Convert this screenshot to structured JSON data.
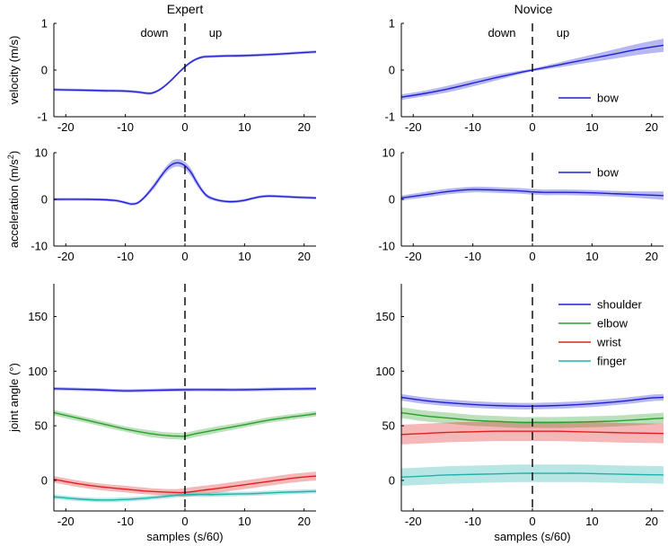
{
  "figure": {
    "titles": {
      "expert": "Expert",
      "novice": "Novice"
    },
    "phase_labels": {
      "down": "down",
      "up": "up"
    }
  },
  "colors": {
    "bow": "#1f1fd6",
    "shoulder": "#1f1fd6",
    "elbow": "#2aa02a",
    "wrist": "#e02020",
    "finger": "#20b2aa"
  },
  "chart_data": [
    {
      "id": "expert-velocity",
      "type": "line",
      "group": "Expert",
      "title": "Expert",
      "xlabel": "",
      "ylabel": "velocity (m/s)",
      "xlim": [
        -22,
        22
      ],
      "ylim": [
        -1,
        1
      ],
      "xticks": [
        -20,
        -10,
        0,
        10,
        20
      ],
      "yticks": [
        -1,
        0,
        1
      ],
      "annotations": [
        "down",
        "up"
      ],
      "legend": null,
      "series": [
        {
          "name": "bow",
          "color": "#1f1fd6",
          "x": [
            -22,
            -18,
            -14,
            -10,
            -8,
            -6,
            -5,
            -4,
            -3,
            -2,
            -1,
            0,
            1,
            2,
            3,
            4,
            6,
            10,
            14,
            18,
            22
          ],
          "y": [
            -0.42,
            -0.43,
            -0.44,
            -0.45,
            -0.47,
            -0.5,
            -0.47,
            -0.4,
            -0.3,
            -0.18,
            -0.05,
            0.07,
            0.17,
            0.24,
            0.28,
            0.29,
            0.3,
            0.31,
            0.33,
            0.36,
            0.39
          ],
          "band": [
            0.03,
            0.03,
            0.03,
            0.03,
            0.03,
            0.03,
            0.03,
            0.03,
            0.03,
            0.03,
            0.03,
            0.03,
            0.03,
            0.03,
            0.03,
            0.03,
            0.03,
            0.03,
            0.03,
            0.03,
            0.03
          ]
        }
      ]
    },
    {
      "id": "novice-velocity",
      "type": "line",
      "group": "Novice",
      "title": "Novice",
      "xlabel": "",
      "ylabel": "",
      "xlim": [
        -22,
        22
      ],
      "ylim": [
        -1,
        1
      ],
      "xticks": [
        -20,
        -10,
        0,
        10,
        20
      ],
      "yticks": [
        -1,
        0,
        1
      ],
      "annotations": [
        "down",
        "up"
      ],
      "legend": [
        "bow"
      ],
      "series": [
        {
          "name": "bow",
          "color": "#1f1fd6",
          "x": [
            -22,
            -18,
            -14,
            -10,
            -6,
            -2,
            0,
            2,
            6,
            10,
            14,
            18,
            22
          ],
          "y": [
            -0.58,
            -0.5,
            -0.4,
            -0.28,
            -0.16,
            -0.05,
            0.0,
            0.05,
            0.15,
            0.25,
            0.35,
            0.45,
            0.53
          ],
          "band": [
            0.06,
            0.06,
            0.07,
            0.07,
            0.06,
            0.04,
            0.03,
            0.04,
            0.06,
            0.08,
            0.1,
            0.12,
            0.14
          ]
        }
      ]
    },
    {
      "id": "expert-acceleration",
      "type": "line",
      "group": "Expert",
      "title": "",
      "xlabel": "",
      "ylabel": "acceleration (m/s",
      "ylabel_sup": "2",
      "ylabel_close": ")",
      "xlim": [
        -22,
        22
      ],
      "ylim": [
        -10,
        10
      ],
      "xticks": [
        -20,
        -10,
        0,
        10,
        20
      ],
      "yticks": [
        -10,
        0,
        10
      ],
      "annotations": [],
      "legend": null,
      "series": [
        {
          "name": "bow",
          "color": "#1f1fd6",
          "x": [
            -22,
            -16,
            -12,
            -10,
            -9,
            -8,
            -7,
            -6,
            -5,
            -4,
            -3,
            -2,
            -1,
            0,
            1,
            2,
            3,
            4,
            6,
            8,
            10,
            12,
            14,
            18,
            22
          ],
          "y": [
            0.0,
            0.0,
            -0.2,
            -0.7,
            -1.0,
            -0.8,
            0.2,
            1.6,
            3.2,
            5.0,
            6.6,
            7.6,
            7.8,
            7.2,
            5.8,
            3.6,
            1.7,
            0.5,
            -0.3,
            -0.5,
            -0.2,
            0.4,
            0.7,
            0.5,
            0.3
          ],
          "band": [
            0.3,
            0.3,
            0.3,
            0.3,
            0.3,
            0.3,
            0.4,
            0.5,
            0.6,
            0.6,
            0.7,
            0.8,
            0.8,
            0.8,
            0.8,
            0.7,
            0.5,
            0.4,
            0.3,
            0.3,
            0.3,
            0.3,
            0.3,
            0.3,
            0.3
          ]
        }
      ]
    },
    {
      "id": "novice-acceleration",
      "type": "line",
      "group": "Novice",
      "title": "",
      "xlabel": "",
      "ylabel": "",
      "xlim": [
        -22,
        22
      ],
      "ylim": [
        -10,
        10
      ],
      "xticks": [
        -20,
        -10,
        0,
        10,
        20
      ],
      "yticks": [
        -10,
        0,
        10
      ],
      "annotations": [],
      "legend": [
        "bow"
      ],
      "series": [
        {
          "name": "bow",
          "color": "#1f1fd6",
          "x": [
            -22,
            -18,
            -14,
            -10,
            -6,
            -2,
            0,
            2,
            6,
            10,
            14,
            18,
            22
          ],
          "y": [
            0.3,
            1.0,
            1.7,
            2.1,
            2.0,
            1.8,
            1.6,
            1.5,
            1.5,
            1.4,
            1.2,
            1.0,
            0.8
          ],
          "band": [
            0.5,
            0.6,
            0.6,
            0.6,
            0.6,
            0.6,
            0.6,
            0.6,
            0.6,
            0.6,
            0.6,
            0.7,
            0.9
          ]
        }
      ]
    },
    {
      "id": "expert-joint-angle",
      "type": "line",
      "group": "Expert",
      "title": "",
      "xlabel": "samples (s/60)",
      "ylabel": "joint angle (°)",
      "xlim": [
        -22,
        22
      ],
      "ylim": [
        -28,
        180
      ],
      "xticks": [
        -20,
        -10,
        0,
        10,
        20
      ],
      "yticks": [
        0,
        50,
        100,
        150
      ],
      "annotations": [],
      "legend": null,
      "series": [
        {
          "name": "shoulder",
          "color": "#1f1fd6",
          "x": [
            -22,
            -15,
            -10,
            -5,
            0,
            5,
            10,
            15,
            22
          ],
          "y": [
            84,
            83,
            82,
            82.5,
            83,
            83,
            83,
            83.5,
            84
          ],
          "band": [
            1.5,
            1.5,
            1.5,
            1.5,
            1.5,
            1.5,
            1.5,
            1.5,
            1.5
          ]
        },
        {
          "name": "elbow",
          "color": "#2aa02a",
          "x": [
            -22,
            -18,
            -14,
            -10,
            -6,
            -3,
            -1,
            0,
            2,
            5,
            10,
            15,
            22
          ],
          "y": [
            62,
            57,
            52,
            47,
            43,
            41,
            40.5,
            40.5,
            43,
            46,
            51,
            56,
            61
          ],
          "band": [
            2.5,
            2.5,
            2.5,
            2.5,
            3,
            3,
            3,
            3,
            3,
            3,
            2.5,
            2.5,
            2.5
          ]
        },
        {
          "name": "wrist",
          "color": "#e02020",
          "x": [
            -22,
            -18,
            -14,
            -10,
            -6,
            -2,
            0,
            3,
            6,
            10,
            14,
            18,
            22
          ],
          "y": [
            1,
            -3,
            -6,
            -8,
            -10,
            -11,
            -11,
            -9,
            -7,
            -4,
            -1,
            2,
            4
          ],
          "band": [
            3,
            3,
            3,
            3,
            3,
            3,
            4,
            4,
            4,
            4,
            4,
            4,
            4
          ]
        },
        {
          "name": "finger",
          "color": "#20b2aa",
          "x": [
            -22,
            -18,
            -14,
            -10,
            -6,
            -2,
            0,
            4,
            8,
            12,
            16,
            22
          ],
          "y": [
            -15,
            -17,
            -18,
            -17.5,
            -16,
            -14,
            -13,
            -13,
            -12.5,
            -12,
            -11,
            -10
          ],
          "band": [
            2,
            2,
            2,
            2,
            2,
            2,
            2,
            2,
            2,
            2,
            2,
            2
          ]
        }
      ]
    },
    {
      "id": "novice-joint-angle",
      "type": "line",
      "group": "Novice",
      "title": "",
      "xlabel": "samples (s/60)",
      "ylabel": "",
      "xlim": [
        -22,
        22
      ],
      "ylim": [
        -28,
        180
      ],
      "xticks": [
        -20,
        -10,
        0,
        10,
        20
      ],
      "yticks": [
        0,
        50,
        100,
        150
      ],
      "annotations": [],
      "legend": [
        "shoulder",
        "elbow",
        "wrist",
        "finger"
      ],
      "series": [
        {
          "name": "shoulder",
          "color": "#1f1fd6",
          "x": [
            -22,
            -18,
            -14,
            -10,
            -6,
            -2,
            0,
            4,
            8,
            12,
            16,
            20,
            22
          ],
          "y": [
            76,
            73,
            71,
            69.5,
            68.5,
            68,
            68,
            68.5,
            69.5,
            71,
            73,
            75.5,
            76
          ],
          "band": [
            3,
            3,
            3,
            3,
            3,
            3,
            3,
            3,
            3,
            3,
            3,
            3,
            3
          ]
        },
        {
          "name": "elbow",
          "color": "#2aa02a",
          "x": [
            -22,
            -18,
            -14,
            -10,
            -6,
            -2,
            0,
            4,
            8,
            12,
            16,
            22
          ],
          "y": [
            62,
            59,
            57,
            55,
            54,
            53,
            53,
            53,
            53.5,
            54,
            55,
            57
          ],
          "band": [
            5,
            5,
            5,
            5,
            5,
            5,
            5,
            5,
            5,
            5,
            5,
            5
          ]
        },
        {
          "name": "wrist",
          "color": "#e02020",
          "x": [
            -22,
            -18,
            -14,
            -10,
            -6,
            -2,
            0,
            4,
            8,
            12,
            16,
            22
          ],
          "y": [
            42,
            43,
            44,
            44.5,
            45,
            45,
            45,
            45,
            44.5,
            44,
            43.5,
            43
          ],
          "band": [
            9,
            9,
            9,
            9,
            9,
            9,
            9,
            9,
            9,
            9,
            9,
            9
          ]
        },
        {
          "name": "finger",
          "color": "#20b2aa",
          "x": [
            -22,
            -18,
            -14,
            -10,
            -6,
            -2,
            0,
            4,
            8,
            12,
            16,
            22
          ],
          "y": [
            3,
            4,
            5,
            5.5,
            6,
            6.5,
            6.5,
            6.5,
            6.5,
            6,
            5.5,
            5
          ],
          "band": [
            8,
            8,
            8,
            8,
            8,
            8,
            8,
            8,
            8,
            8,
            8,
            8
          ]
        }
      ]
    }
  ]
}
